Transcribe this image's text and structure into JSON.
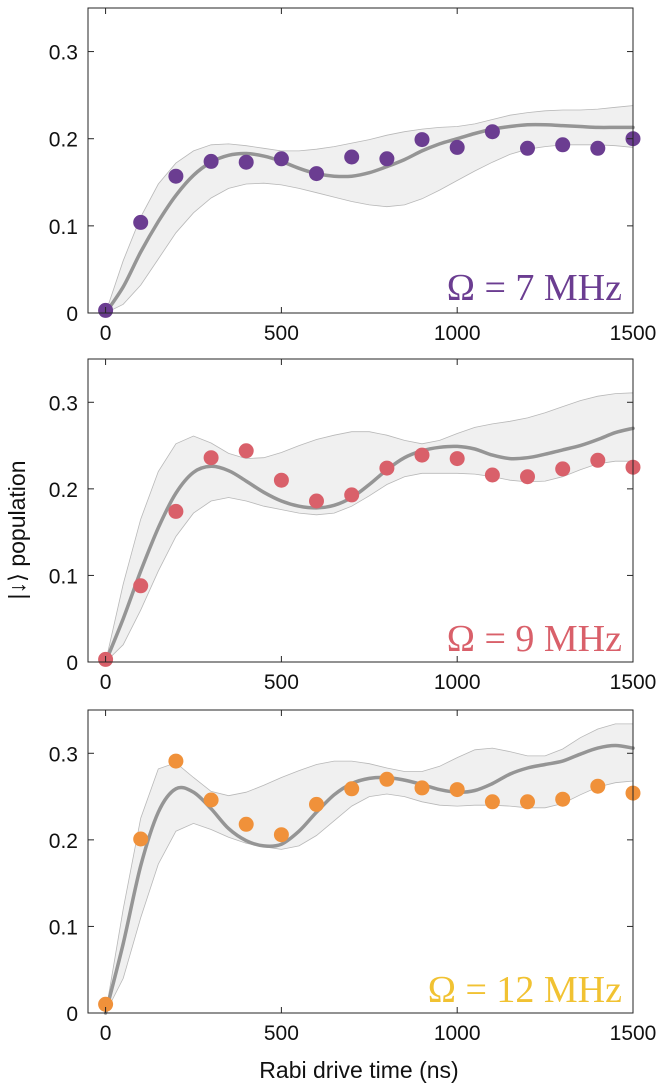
{
  "chart_data": [
    {
      "type": "scatter",
      "label": "Ω = 7 MHz",
      "color": "#6b3d91",
      "xlim": [
        -50,
        1500
      ],
      "ylim": [
        0,
        0.35
      ],
      "xticks": [
        "0",
        "500",
        "1000",
        "1500"
      ],
      "yticks": [
        "0",
        "0.1",
        "0.2",
        "0.3"
      ],
      "data_points": {
        "x": [
          0,
          100,
          200,
          300,
          400,
          500,
          600,
          700,
          800,
          900,
          1000,
          1100,
          1200,
          1300,
          1400,
          1500
        ],
        "y": [
          0.003,
          0.104,
          0.157,
          0.174,
          0.173,
          0.177,
          0.16,
          0.179,
          0.177,
          0.199,
          0.19,
          0.208,
          0.189,
          0.193,
          0.189,
          0.2
        ]
      },
      "model_curve": {
        "x": [
          0,
          50,
          100,
          150,
          200,
          250,
          300,
          350,
          400,
          450,
          500,
          550,
          600,
          650,
          700,
          750,
          800,
          850,
          900,
          950,
          1000,
          1050,
          1100,
          1150,
          1200,
          1250,
          1300,
          1350,
          1400,
          1450,
          1500
        ],
        "y": [
          0.0,
          0.03,
          0.07,
          0.105,
          0.135,
          0.158,
          0.173,
          0.181,
          0.183,
          0.18,
          0.174,
          0.166,
          0.16,
          0.157,
          0.157,
          0.161,
          0.168,
          0.176,
          0.186,
          0.194,
          0.2,
          0.206,
          0.211,
          0.214,
          0.216,
          0.216,
          0.215,
          0.214,
          0.213,
          0.213,
          0.213
        ],
        "band_upper": [
          0.0,
          0.06,
          0.11,
          0.148,
          0.172,
          0.186,
          0.193,
          0.194,
          0.192,
          0.189,
          0.186,
          0.186,
          0.188,
          0.191,
          0.195,
          0.199,
          0.204,
          0.208,
          0.211,
          0.213,
          0.214,
          0.217,
          0.222,
          0.227,
          0.23,
          0.232,
          0.233,
          0.233,
          0.234,
          0.236,
          0.238
        ],
        "band_lower": [
          0.0,
          0.01,
          0.032,
          0.062,
          0.092,
          0.115,
          0.132,
          0.143,
          0.148,
          0.149,
          0.147,
          0.143,
          0.138,
          0.133,
          0.128,
          0.124,
          0.122,
          0.124,
          0.131,
          0.141,
          0.152,
          0.163,
          0.173,
          0.182,
          0.188,
          0.191,
          0.193,
          0.193,
          0.193,
          0.192,
          0.19
        ]
      }
    },
    {
      "type": "scatter",
      "label": "Ω = 9 MHz",
      "color": "#d9606a",
      "xlim": [
        -50,
        1500
      ],
      "ylim": [
        0,
        0.35
      ],
      "xticks": [
        "0",
        "500",
        "1000",
        "1500"
      ],
      "yticks": [
        "0",
        "0.1",
        "0.2",
        "0.3"
      ],
      "data_points": {
        "x": [
          0,
          100,
          200,
          300,
          400,
          500,
          600,
          700,
          800,
          900,
          1000,
          1100,
          1200,
          1300,
          1400,
          1500
        ],
        "y": [
          0.003,
          0.088,
          0.174,
          0.236,
          0.244,
          0.21,
          0.186,
          0.193,
          0.224,
          0.239,
          0.235,
          0.216,
          0.214,
          0.223,
          0.233,
          0.225
        ]
      },
      "model_curve": {
        "x": [
          0,
          50,
          100,
          150,
          200,
          250,
          300,
          350,
          400,
          450,
          500,
          550,
          600,
          650,
          700,
          750,
          800,
          850,
          900,
          950,
          1000,
          1050,
          1100,
          1150,
          1200,
          1250,
          1300,
          1350,
          1400,
          1450,
          1500
        ],
        "y": [
          0.0,
          0.05,
          0.105,
          0.155,
          0.195,
          0.219,
          0.226,
          0.221,
          0.209,
          0.196,
          0.186,
          0.18,
          0.178,
          0.181,
          0.19,
          0.205,
          0.222,
          0.236,
          0.244,
          0.248,
          0.249,
          0.246,
          0.239,
          0.235,
          0.236,
          0.24,
          0.245,
          0.25,
          0.257,
          0.265,
          0.27
        ],
        "band_upper": [
          0.0,
          0.09,
          0.165,
          0.22,
          0.252,
          0.261,
          0.253,
          0.241,
          0.235,
          0.236,
          0.242,
          0.25,
          0.257,
          0.262,
          0.266,
          0.266,
          0.262,
          0.256,
          0.252,
          0.256,
          0.264,
          0.271,
          0.275,
          0.278,
          0.282,
          0.288,
          0.295,
          0.302,
          0.307,
          0.31,
          0.311
        ],
        "band_lower": [
          0.0,
          0.02,
          0.06,
          0.105,
          0.145,
          0.172,
          0.186,
          0.19,
          0.186,
          0.18,
          0.176,
          0.172,
          0.17,
          0.172,
          0.18,
          0.192,
          0.205,
          0.214,
          0.218,
          0.218,
          0.218,
          0.217,
          0.214,
          0.21,
          0.208,
          0.209,
          0.214,
          0.222,
          0.229,
          0.232,
          0.232
        ]
      }
    },
    {
      "type": "scatter",
      "label": "Ω = 12 MHz",
      "color": "#f0913a",
      "label_color": "#f1c232",
      "xlim": [
        -50,
        1500
      ],
      "ylim": [
        0,
        0.35
      ],
      "xticks": [
        "0",
        "500",
        "1000",
        "1500"
      ],
      "yticks": [
        "0",
        "0.1",
        "0.2",
        "0.3"
      ],
      "data_points": {
        "x": [
          0,
          100,
          200,
          300,
          400,
          500,
          600,
          700,
          800,
          900,
          1000,
          1100,
          1200,
          1300,
          1400,
          1500
        ],
        "y": [
          0.01,
          0.201,
          0.291,
          0.246,
          0.218,
          0.206,
          0.241,
          0.259,
          0.27,
          0.26,
          0.258,
          0.244,
          0.244,
          0.247,
          0.262,
          0.254
        ]
      },
      "model_curve": {
        "x": [
          0,
          50,
          100,
          150,
          200,
          250,
          300,
          350,
          400,
          450,
          500,
          550,
          600,
          650,
          700,
          750,
          800,
          850,
          900,
          950,
          1000,
          1050,
          1100,
          1150,
          1200,
          1250,
          1300,
          1350,
          1400,
          1450,
          1500
        ],
        "y": [
          0.0,
          0.08,
          0.17,
          0.232,
          0.259,
          0.255,
          0.236,
          0.213,
          0.199,
          0.193,
          0.195,
          0.21,
          0.232,
          0.252,
          0.265,
          0.271,
          0.272,
          0.269,
          0.264,
          0.258,
          0.255,
          0.257,
          0.265,
          0.276,
          0.283,
          0.287,
          0.291,
          0.299,
          0.306,
          0.309,
          0.306
        ],
        "band_upper": [
          0.0,
          0.12,
          0.225,
          0.282,
          0.289,
          0.272,
          0.256,
          0.251,
          0.255,
          0.263,
          0.272,
          0.28,
          0.287,
          0.291,
          0.291,
          0.288,
          0.283,
          0.279,
          0.279,
          0.285,
          0.295,
          0.304,
          0.306,
          0.302,
          0.297,
          0.297,
          0.305,
          0.318,
          0.328,
          0.334,
          0.334
        ],
        "band_lower": [
          0.0,
          0.04,
          0.11,
          0.172,
          0.21,
          0.219,
          0.212,
          0.203,
          0.196,
          0.192,
          0.189,
          0.193,
          0.205,
          0.222,
          0.239,
          0.25,
          0.253,
          0.25,
          0.244,
          0.24,
          0.239,
          0.24,
          0.24,
          0.239,
          0.237,
          0.237,
          0.242,
          0.252,
          0.261,
          0.266,
          0.268
        ]
      }
    }
  ],
  "xlabel": "Rabi drive time (ns)",
  "ylabel": "|↓⟩ population"
}
